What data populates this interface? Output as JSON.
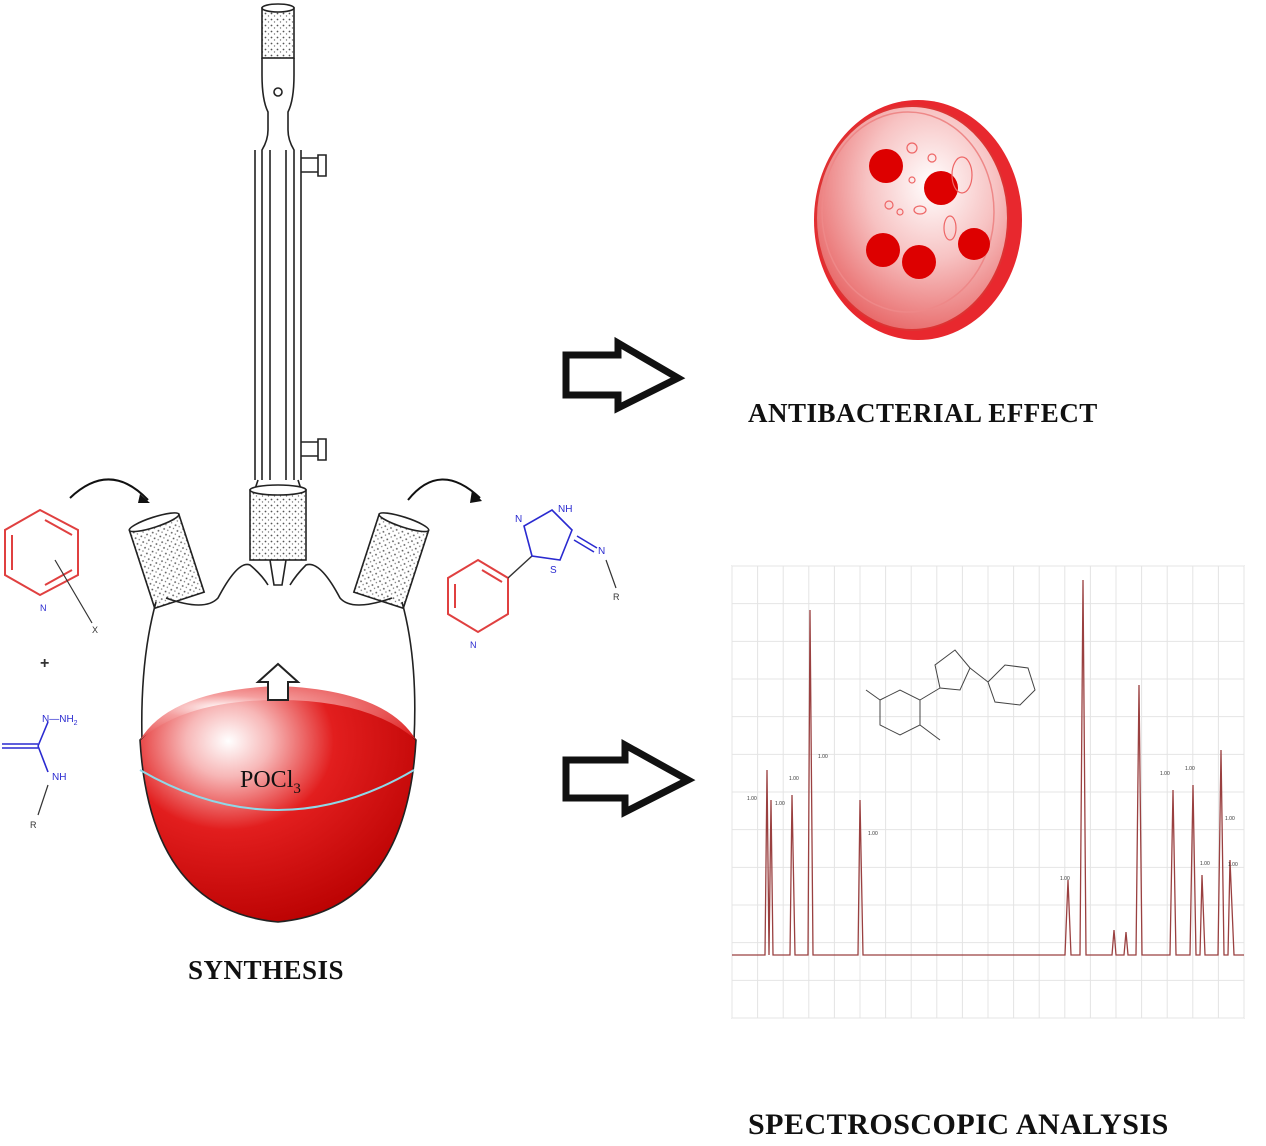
{
  "captions": {
    "synthesis": "SYNTHESIS",
    "antibacterial": "ANTIBACTERIAL EFFECT",
    "spectroscopic": "SPECTROSCOPIC ANALYSIS"
  },
  "flask": {
    "reagent_main": "POCl",
    "reagent_sub": "3"
  },
  "reactants": {
    "pyridine_substituent": "X",
    "plus": "+",
    "thiosemicarbazide_NH_NH2": "N—NH",
    "thiosemicarbazide_sub": "2",
    "thiosemicarbazide_NH": "NH",
    "thiosemicarbazide_R": "R"
  },
  "product": {
    "NH": "NH",
    "N_ring": "N",
    "S": "S",
    "N_exo": "N",
    "R": "R"
  },
  "colors": {
    "flask_liquid": "#e01818",
    "pyridine": "#e04040",
    "heteroatom_blue": "#2a2ad0",
    "spectrum_line": "#9a4040",
    "petri_red": "#e8282e"
  }
}
